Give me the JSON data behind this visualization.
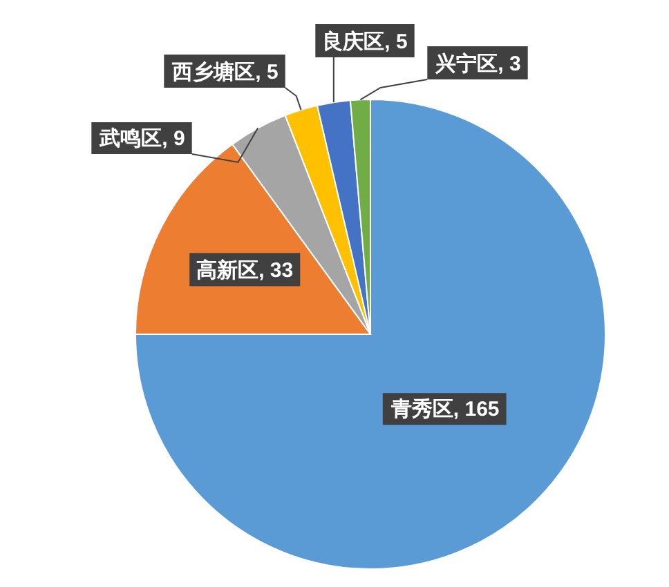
{
  "chart_data": {
    "type": "pie",
    "categories": [
      "青秀区",
      "高新区",
      "武鸣区",
      "西乡塘区",
      "良庆区",
      "兴宁区"
    ],
    "values": [
      165,
      33,
      9,
      5,
      5,
      3
    ],
    "colors": [
      "#5b9bd5",
      "#ed7d31",
      "#a5a5a5",
      "#ffc000",
      "#4472c4",
      "#70ad47"
    ],
    "value_labels": [
      ", 165",
      ", 33",
      ", 9",
      ", 5",
      ", 5",
      ", 3"
    ]
  }
}
